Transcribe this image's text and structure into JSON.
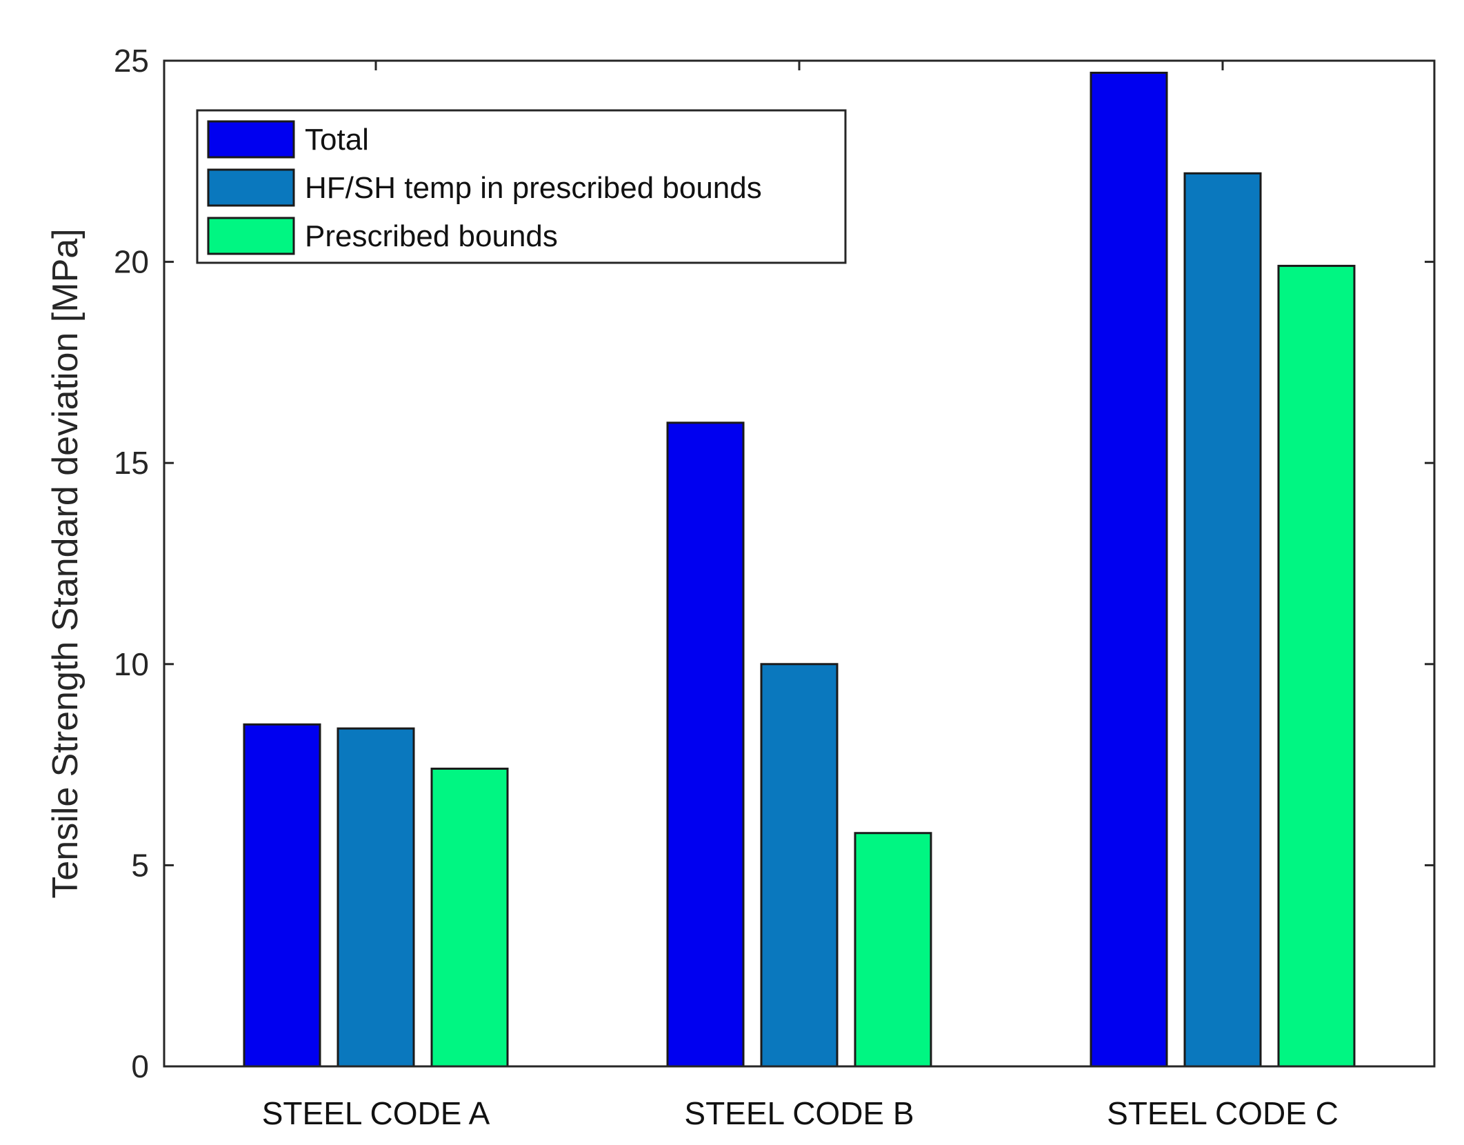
{
  "chart_data": {
    "type": "bar",
    "title": "",
    "xlabel": "",
    "ylabel": "Tensile Strength Standard deviation [MPa]",
    "ylim": [
      0,
      25
    ],
    "yticks": [
      0,
      5,
      10,
      15,
      20,
      25
    ],
    "grid": false,
    "legend_position": "top-left",
    "categories": [
      "STEEL CODE A",
      "STEEL CODE B",
      "STEEL CODE C"
    ],
    "series": [
      {
        "name": "Total",
        "color": "#0000f0",
        "values": [
          8.5,
          16.0,
          24.7
        ]
      },
      {
        "name": "HF/SH temp in prescribed bounds",
        "color": "#0a78be",
        "values": [
          8.4,
          10.0,
          22.2
        ]
      },
      {
        "name": "Prescribed bounds",
        "color": "#00f682",
        "values": [
          7.4,
          5.8,
          19.9
        ]
      }
    ]
  }
}
